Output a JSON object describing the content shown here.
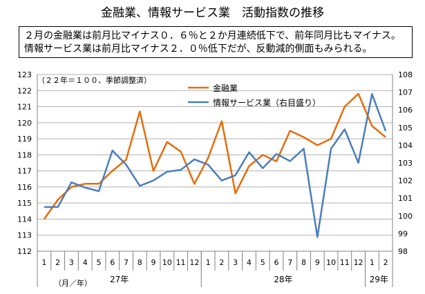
{
  "title": "金融業、情報サービス業　活動指数の推移",
  "description": [
    "２月の金融業は前月比マイナス０．６％と２か月連続低下で、前年同月比もマイナス。",
    "情報サービス業は前月比マイナス２．０％低下だが、反動減的側面もみられる。"
  ],
  "chart_data": {
    "type": "line",
    "note": "（２２年＝１００、季節調整済）",
    "categories": [
      "1",
      "2",
      "3",
      "4",
      "5",
      "6",
      "7",
      "8",
      "9",
      "10",
      "11",
      "12",
      "1",
      "2",
      "3",
      "4",
      "5",
      "6",
      "7",
      "8",
      "9",
      "10",
      "11",
      "12",
      "1",
      "2"
    ],
    "year_labels": [
      {
        "label": "27年",
        "start": 0,
        "end": 11
      },
      {
        "label": "28年",
        "start": 12,
        "end": 23
      },
      {
        "label": "29年",
        "start": 24,
        "end": 25
      }
    ],
    "x_unit_label": "（月／年）",
    "y_left": {
      "min": 112,
      "max": 123,
      "step": 1
    },
    "y_right": {
      "min": 98,
      "max": 108,
      "step": 1
    },
    "series": [
      {
        "name": "金融業",
        "axis": "left",
        "color": "#E46C0A",
        "values": [
          114.0,
          115.2,
          116.0,
          116.2,
          116.2,
          117.0,
          117.7,
          120.7,
          117.0,
          118.8,
          118.2,
          116.2,
          117.8,
          120.1,
          115.6,
          117.3,
          118.0,
          117.6,
          119.5,
          119.1,
          118.6,
          119.0,
          121.0,
          121.8,
          119.8,
          119.1
        ]
      },
      {
        "name": "情報サービス業（右目盛り）",
        "axis": "right",
        "color": "#4A7EBB",
        "values": [
          100.5,
          100.5,
          101.9,
          101.6,
          101.4,
          103.7,
          102.9,
          101.7,
          102.0,
          102.5,
          102.6,
          103.2,
          102.9,
          102.0,
          102.3,
          103.6,
          102.7,
          103.5,
          103.1,
          103.8,
          98.8,
          103.8,
          104.9,
          103.0,
          106.9,
          104.8
        ]
      }
    ]
  }
}
